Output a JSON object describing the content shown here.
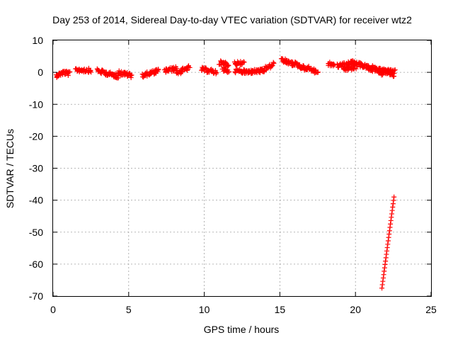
{
  "chart_data": {
    "type": "scatter",
    "title": "Day 253 of 2014, Sidereal Day-to-day VTEC variation (SDTVAR) for receiver wtz2",
    "xlabel": "GPS time / hours",
    "ylabel": "SDTVAR / TECUs",
    "xlim": [
      0,
      25
    ],
    "ylim": [
      -70,
      10
    ],
    "xticks": [
      0,
      5,
      10,
      15,
      20,
      25
    ],
    "yticks": [
      10,
      0,
      -10,
      -20,
      -30,
      -40,
      -50,
      -60,
      -70
    ],
    "grid": true,
    "legend": "none",
    "marker": "+",
    "color": "#ff0000",
    "series": [
      {
        "name": "SDTVAR",
        "segments": [
          {
            "x": [
              0.2,
              0.7
            ],
            "y": [
              -1.0,
              0.0
            ]
          },
          {
            "x": [
              0.7,
              1.1
            ],
            "y": [
              0.0,
              -0.5
            ]
          },
          {
            "x": [
              1.5,
              2.5
            ],
            "y": [
              0.8,
              0.6
            ]
          },
          {
            "x": [
              2.9,
              3.7
            ],
            "y": [
              0.6,
              -0.5
            ]
          },
          {
            "x": [
              3.7,
              4.3
            ],
            "y": [
              -0.5,
              -1.2
            ]
          },
          {
            "x": [
              4.3,
              5.2
            ],
            "y": [
              0.0,
              -1.0
            ]
          },
          {
            "x": [
              5.9,
              7.0
            ],
            "y": [
              -1.0,
              0.5
            ]
          },
          {
            "x": [
              7.4,
              8.2
            ],
            "y": [
              0.5,
              1.2
            ]
          },
          {
            "x": [
              8.2,
              9.0
            ],
            "y": [
              -0.2,
              1.5
            ]
          },
          {
            "x": [
              9.8,
              10.8
            ],
            "y": [
              1.0,
              0.0
            ]
          },
          {
            "x": [
              11.0,
              11.6
            ],
            "y": [
              3.0,
              2.5
            ]
          },
          {
            "x": [
              11.2,
              11.6
            ],
            "y": [
              1.0,
              0.5
            ]
          },
          {
            "x": [
              12.0,
              12.6
            ],
            "y": [
              2.8,
              2.8
            ]
          },
          {
            "x": [
              12.0,
              13.0
            ],
            "y": [
              0.5,
              0.0
            ]
          },
          {
            "x": [
              13.0,
              14.0
            ],
            "y": [
              0.2,
              0.5
            ]
          },
          {
            "x": [
              14.0,
              14.6
            ],
            "y": [
              1.0,
              2.5
            ]
          },
          {
            "x": [
              15.1,
              15.9
            ],
            "y": [
              4.0,
              2.5
            ]
          },
          {
            "x": [
              15.8,
              16.8
            ],
            "y": [
              3.0,
              1.0
            ]
          },
          {
            "x": [
              16.8,
              17.5
            ],
            "y": [
              1.5,
              0.0
            ]
          },
          {
            "x": [
              18.2,
              18.6
            ],
            "y": [
              2.5,
              2.5
            ]
          },
          {
            "x": [
              18.8,
              19.8
            ],
            "y": [
              2.0,
              3.0
            ]
          },
          {
            "x": [
              19.2,
              20.0
            ],
            "y": [
              1.0,
              1.5
            ]
          },
          {
            "x": [
              19.8,
              20.9
            ],
            "y": [
              3.0,
              1.5
            ]
          },
          {
            "x": [
              20.9,
              22.6
            ],
            "y": [
              1.0,
              0.2
            ]
          },
          {
            "x": [
              21.1,
              21.8
            ],
            "y": [
              1.5,
              -0.5
            ]
          },
          {
            "x": [
              21.8,
              22.5
            ],
            "y": [
              0.5,
              -0.8
            ]
          },
          {
            "x": [
              21.75,
              22.55
            ],
            "y": [
              -67.5,
              -39.0
            ]
          }
        ]
      }
    ]
  }
}
